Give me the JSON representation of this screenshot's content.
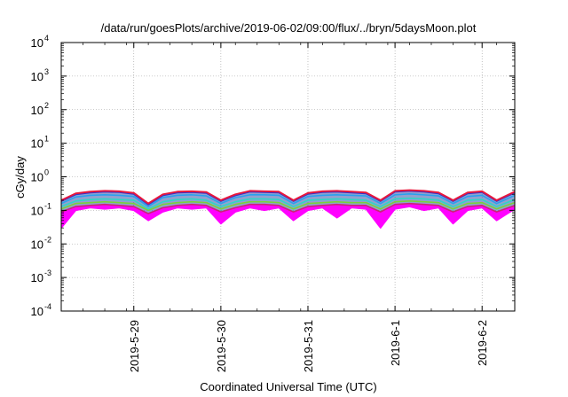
{
  "chart_data": {
    "type": "area",
    "title": "/data/run/goesPlots/archive/2019-06-02/09:00/flux/../bryn/5daysMoon.plot",
    "xlabel": "Coordinated Universal Time (UTC)",
    "ylabel": "cGy/day",
    "yscale": "log",
    "ylim": [
      0.0001,
      10000
    ],
    "y_ticks": [
      {
        "value": 0.0001,
        "base": "10",
        "exp": "-4"
      },
      {
        "value": 0.001,
        "base": "10",
        "exp": "-3"
      },
      {
        "value": 0.01,
        "base": "10",
        "exp": "-2"
      },
      {
        "value": 0.1,
        "base": "10",
        "exp": "-1"
      },
      {
        "value": 1,
        "base": "10",
        "exp": "0"
      },
      {
        "value": 10,
        "base": "10",
        "exp": "1"
      },
      {
        "value": 100,
        "base": "10",
        "exp": "2"
      },
      {
        "value": 1000,
        "base": "10",
        "exp": "3"
      },
      {
        "value": 10000,
        "base": "10",
        "exp": "4"
      }
    ],
    "x_ticks": [
      "2019-5-29",
      "2019-5-30",
      "2019-5-31",
      "2019-6-1",
      "2019-6-2"
    ],
    "xlim": [
      "2019-05-28 04:00",
      "2019-06-02 09:00"
    ],
    "grid": true,
    "legend": "none",
    "x": [
      "2019-05-28 04:00",
      "2019-05-28 08:00",
      "2019-05-28 12:00",
      "2019-05-28 16:00",
      "2019-05-28 20:00",
      "2019-05-29 00:00",
      "2019-05-29 04:00",
      "2019-05-29 08:00",
      "2019-05-29 12:00",
      "2019-05-29 16:00",
      "2019-05-29 20:00",
      "2019-05-30 00:00",
      "2019-05-30 04:00",
      "2019-05-30 08:00",
      "2019-05-30 12:00",
      "2019-05-30 16:00",
      "2019-05-30 20:00",
      "2019-05-31 00:00",
      "2019-05-31 04:00",
      "2019-05-31 08:00",
      "2019-05-31 12:00",
      "2019-05-31 16:00",
      "2019-05-31 20:00",
      "2019-06-01 00:00",
      "2019-06-01 04:00",
      "2019-06-01 08:00",
      "2019-06-01 12:00",
      "2019-06-01 16:00",
      "2019-06-01 20:00",
      "2019-06-02 00:00",
      "2019-06-02 04:00",
      "2019-06-02 09:00"
    ],
    "series": [
      {
        "color": "#e8173c",
        "values": [
          0.2,
          0.32,
          0.36,
          0.38,
          0.37,
          0.33,
          0.16,
          0.3,
          0.36,
          0.37,
          0.35,
          0.2,
          0.3,
          0.38,
          0.37,
          0.36,
          0.2,
          0.33,
          0.37,
          0.38,
          0.36,
          0.34,
          0.2,
          0.38,
          0.4,
          0.38,
          0.34,
          0.2,
          0.34,
          0.37,
          0.2,
          0.36
        ]
      },
      {
        "color": "#3333cc",
        "values": [
          0.19,
          0.3,
          0.34,
          0.36,
          0.35,
          0.31,
          0.15,
          0.28,
          0.34,
          0.35,
          0.33,
          0.19,
          0.28,
          0.36,
          0.35,
          0.34,
          0.19,
          0.31,
          0.35,
          0.36,
          0.34,
          0.32,
          0.19,
          0.36,
          0.38,
          0.36,
          0.32,
          0.19,
          0.32,
          0.35,
          0.19,
          0.34
        ]
      },
      {
        "color": "#2aa0ee",
        "values": [
          0.16,
          0.25,
          0.28,
          0.29,
          0.28,
          0.26,
          0.13,
          0.24,
          0.28,
          0.29,
          0.27,
          0.16,
          0.24,
          0.29,
          0.29,
          0.28,
          0.16,
          0.26,
          0.28,
          0.29,
          0.28,
          0.27,
          0.16,
          0.29,
          0.31,
          0.29,
          0.27,
          0.16,
          0.26,
          0.28,
          0.16,
          0.28
        ]
      },
      {
        "color": "#2fd6c6",
        "values": [
          0.13,
          0.19,
          0.21,
          0.22,
          0.21,
          0.2,
          0.11,
          0.18,
          0.21,
          0.22,
          0.2,
          0.13,
          0.18,
          0.22,
          0.22,
          0.21,
          0.13,
          0.2,
          0.21,
          0.22,
          0.21,
          0.2,
          0.13,
          0.22,
          0.23,
          0.22,
          0.2,
          0.13,
          0.2,
          0.21,
          0.13,
          0.21
        ]
      },
      {
        "color": "#7ad13a",
        "values": [
          0.11,
          0.16,
          0.17,
          0.18,
          0.17,
          0.16,
          0.1,
          0.15,
          0.17,
          0.18,
          0.17,
          0.11,
          0.15,
          0.18,
          0.18,
          0.17,
          0.11,
          0.16,
          0.17,
          0.18,
          0.17,
          0.17,
          0.11,
          0.18,
          0.19,
          0.18,
          0.17,
          0.11,
          0.16,
          0.17,
          0.11,
          0.17
        ]
      },
      {
        "color": "#cc2277",
        "values": [
          0.09,
          0.13,
          0.14,
          0.15,
          0.14,
          0.13,
          0.08,
          0.12,
          0.14,
          0.15,
          0.14,
          0.09,
          0.12,
          0.15,
          0.15,
          0.14,
          0.09,
          0.13,
          0.14,
          0.15,
          0.14,
          0.14,
          0.09,
          0.15,
          0.16,
          0.15,
          0.14,
          0.09,
          0.13,
          0.14,
          0.09,
          0.14
        ]
      },
      {
        "color": "#ff00ff",
        "values": [
          0.03,
          0.1,
          0.12,
          0.11,
          0.12,
          0.1,
          0.05,
          0.09,
          0.12,
          0.11,
          0.12,
          0.04,
          0.09,
          0.12,
          0.1,
          0.12,
          0.05,
          0.1,
          0.12,
          0.06,
          0.12,
          0.11,
          0.03,
          0.11,
          0.13,
          0.1,
          0.12,
          0.04,
          0.1,
          0.12,
          0.05,
          0.11
        ]
      }
    ]
  }
}
